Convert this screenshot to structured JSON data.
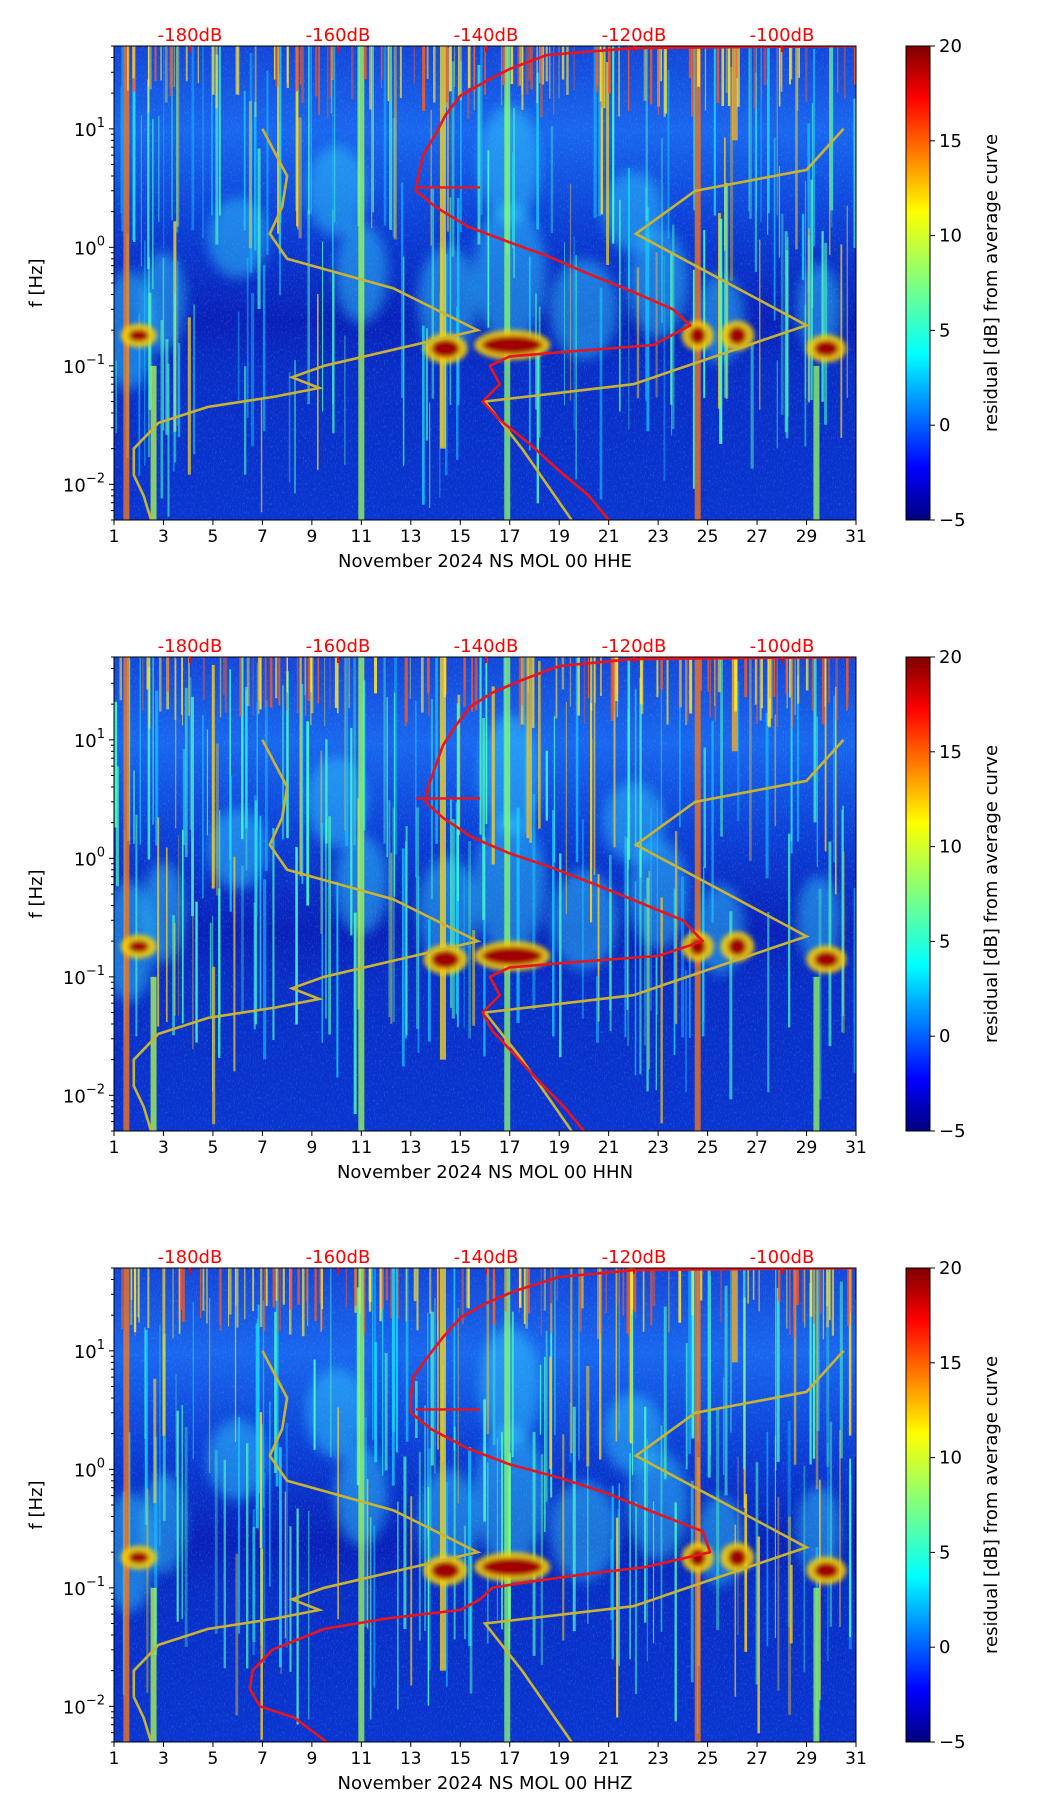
{
  "figure": {
    "x_ticks": [
      "1",
      "3",
      "5",
      "7",
      "9",
      "11",
      "13",
      "15",
      "17",
      "19",
      "21",
      "23",
      "25",
      "27",
      "29",
      "31"
    ],
    "y_ticks": [
      {
        "base": "10",
        "exp": "1",
        "value": 10
      },
      {
        "base": "10",
        "exp": "0",
        "value": 1
      },
      {
        "base": "10",
        "exp": "−1",
        "value": 0.1
      },
      {
        "base": "10",
        "exp": "−2",
        "value": 0.01
      }
    ],
    "db_ticks": [
      "-180dB",
      "-160dB",
      "-140dB",
      "-120dB",
      "-100dB"
    ],
    "colorbar": {
      "label": "residual [dB] from average curve",
      "ticks": [
        "20",
        "15",
        "10",
        "5",
        "0",
        "−5"
      ],
      "tick_values": [
        20,
        15,
        10,
        5,
        0,
        -5
      ],
      "range": [
        -5,
        20
      ],
      "cmap": "jet"
    },
    "ylabel": "f [Hz]",
    "colors": {
      "db_text": "#ff0000",
      "red_curve": "#e8141e",
      "model_curve": "#c8b432"
    }
  },
  "chart_data": [
    {
      "type": "heatmap",
      "title": "",
      "xlabel": "November 2024 NS MOL 00 HHE",
      "ylabel": "f [Hz]",
      "xlim": [
        1,
        31
      ],
      "ylim": [
        0.005,
        50
      ],
      "yscale": "log",
      "top_axis_db": [
        -180,
        -160,
        -140,
        -120,
        -100
      ],
      "series": [
        {
          "name": "residual",
          "values_desc": "spectrogram residual"
        },
        {
          "name": "average PSD curve (red)",
          "points": [
            [
              21,
              0.005
            ],
            [
              20.2,
              0.008
            ],
            [
              19,
              0.013
            ],
            [
              17.8,
              0.022
            ],
            [
              16.6,
              0.035
            ],
            [
              15.9,
              0.05
            ],
            [
              16.6,
              0.07
            ],
            [
              16.2,
              0.1
            ],
            [
              17,
              0.12
            ],
            [
              19,
              0.13
            ],
            [
              21,
              0.14
            ],
            [
              22.8,
              0.15
            ],
            [
              24.3,
              0.22
            ],
            [
              23.6,
              0.3
            ],
            [
              22,
              0.42
            ],
            [
              20,
              0.62
            ],
            [
              18.5,
              0.85
            ],
            [
              17,
              1.1
            ],
            [
              15.3,
              1.5
            ],
            [
              14,
              2.2
            ],
            [
              13.2,
              3
            ],
            [
              13.3,
              4
            ],
            [
              13.5,
              6
            ],
            [
              14,
              9
            ],
            [
              14.4,
              13
            ],
            [
              15,
              19
            ],
            [
              16,
              25
            ],
            [
              17,
              32
            ],
            [
              18.5,
              42
            ],
            [
              22,
              48
            ],
            [
              31,
              50
            ]
          ]
        },
        {
          "name": "noise model curve (yellow)",
          "points": [
            [
              2.5,
              0.005
            ],
            [
              2.2,
              0.008
            ],
            [
              1.8,
              0.012
            ],
            [
              1.8,
              0.02
            ],
            [
              2.8,
              0.033
            ],
            [
              4.8,
              0.045
            ],
            [
              7.5,
              0.055
            ],
            [
              9.3,
              0.065
            ],
            [
              8.2,
              0.08
            ],
            [
              9.5,
              0.1
            ],
            [
              15.7,
              0.2
            ],
            [
              12.3,
              0.45
            ],
            [
              8,
              0.8
            ],
            [
              7.3,
              1.3
            ],
            [
              7.8,
              2.2
            ],
            [
              8,
              4
            ],
            [
              7,
              10
            ],
            [
              19.5,
              0.005
            ],
            [
              17.5,
              0.02
            ],
            [
              16,
              0.05
            ],
            [
              22,
              0.07
            ],
            [
              29,
              0.22
            ],
            [
              22.1,
              1.3
            ],
            [
              24.5,
              3
            ],
            [
              29,
              4.5
            ],
            [
              30.5,
              10
            ]
          ]
        }
      ]
    },
    {
      "type": "heatmap",
      "title": "",
      "xlabel": "November 2024 NS MOL 00 HHN",
      "ylabel": "f [Hz]",
      "xlim": [
        1,
        31
      ],
      "ylim": [
        0.005,
        50
      ],
      "yscale": "log",
      "top_axis_db": [
        -180,
        -160,
        -140,
        -120,
        -100
      ],
      "series": [
        {
          "name": "residual",
          "values_desc": "spectrogram residual"
        },
        {
          "name": "average PSD curve (red)",
          "points": [
            [
              20,
              0.005
            ],
            [
              19.2,
              0.008
            ],
            [
              18.2,
              0.013
            ],
            [
              17.2,
              0.022
            ],
            [
              16.3,
              0.035
            ],
            [
              15.9,
              0.05
            ],
            [
              16.6,
              0.07
            ],
            [
              16.2,
              0.1
            ],
            [
              17,
              0.12
            ],
            [
              19,
              0.13
            ],
            [
              21,
              0.14
            ],
            [
              23,
              0.15
            ],
            [
              24.8,
              0.2
            ],
            [
              24,
              0.3
            ],
            [
              22.3,
              0.42
            ],
            [
              20.3,
              0.62
            ],
            [
              18.6,
              0.85
            ],
            [
              17,
              1.1
            ],
            [
              15.5,
              1.5
            ],
            [
              14.3,
              2.2
            ],
            [
              13.6,
              3
            ],
            [
              13.7,
              4
            ],
            [
              14,
              6
            ],
            [
              14.3,
              9
            ],
            [
              14.8,
              13
            ],
            [
              15.4,
              19
            ],
            [
              16.3,
              25
            ],
            [
              17.5,
              32
            ],
            [
              19,
              42
            ],
            [
              22,
              48
            ],
            [
              31,
              50
            ]
          ]
        },
        {
          "name": "noise model curve (yellow)",
          "points": [
            [
              2.5,
              0.005
            ],
            [
              2.2,
              0.008
            ],
            [
              1.8,
              0.012
            ],
            [
              1.8,
              0.02
            ],
            [
              2.8,
              0.033
            ],
            [
              4.8,
              0.045
            ],
            [
              7.5,
              0.055
            ],
            [
              9.3,
              0.065
            ],
            [
              8.2,
              0.08
            ],
            [
              9.5,
              0.1
            ],
            [
              15.7,
              0.2
            ],
            [
              12.3,
              0.45
            ],
            [
              8,
              0.8
            ],
            [
              7.3,
              1.3
            ],
            [
              7.8,
              2.2
            ],
            [
              8,
              4
            ],
            [
              7,
              10
            ],
            [
              19.5,
              0.005
            ],
            [
              17.5,
              0.02
            ],
            [
              16,
              0.05
            ],
            [
              22,
              0.07
            ],
            [
              29,
              0.22
            ],
            [
              22.1,
              1.3
            ],
            [
              24.5,
              3
            ],
            [
              29,
              4.5
            ],
            [
              30.5,
              10
            ]
          ]
        }
      ]
    },
    {
      "type": "heatmap",
      "title": "",
      "xlabel": "November 2024 NS MOL 00 HHZ",
      "ylabel": "f [Hz]",
      "xlim": [
        1,
        31
      ],
      "ylim": [
        0.005,
        50
      ],
      "yscale": "log",
      "top_axis_db": [
        -180,
        -160,
        -140,
        -120,
        -100
      ],
      "series": [
        {
          "name": "residual",
          "values_desc": "spectrogram residual"
        },
        {
          "name": "average PSD curve (red)",
          "points": [
            [
              9.6,
              0.005
            ],
            [
              8.3,
              0.008
            ],
            [
              6.9,
              0.01
            ],
            [
              6.5,
              0.014
            ],
            [
              6.6,
              0.02
            ],
            [
              7.4,
              0.03
            ],
            [
              9.5,
              0.045
            ],
            [
              12,
              0.055
            ],
            [
              15,
              0.065
            ],
            [
              15.8,
              0.08
            ],
            [
              16.3,
              0.1
            ],
            [
              17.5,
              0.11
            ],
            [
              20,
              0.13
            ],
            [
              22.5,
              0.15
            ],
            [
              25.1,
              0.2
            ],
            [
              24.8,
              0.3
            ],
            [
              23,
              0.42
            ],
            [
              21,
              0.62
            ],
            [
              19,
              0.85
            ],
            [
              17,
              1.1
            ],
            [
              15.3,
              1.5
            ],
            [
              13.8,
              2.2
            ],
            [
              13,
              3
            ],
            [
              13,
              4
            ],
            [
              13.1,
              6
            ],
            [
              13.7,
              9
            ],
            [
              14.3,
              13
            ],
            [
              15,
              19
            ],
            [
              16,
              25
            ],
            [
              17.2,
              32
            ],
            [
              19,
              42
            ],
            [
              22,
              48
            ],
            [
              31,
              50
            ]
          ]
        },
        {
          "name": "noise model curve (yellow)",
          "points": [
            [
              2.5,
              0.005
            ],
            [
              2.2,
              0.008
            ],
            [
              1.8,
              0.012
            ],
            [
              1.8,
              0.02
            ],
            [
              2.8,
              0.033
            ],
            [
              4.8,
              0.045
            ],
            [
              7.5,
              0.055
            ],
            [
              9.3,
              0.065
            ],
            [
              8.2,
              0.08
            ],
            [
              9.5,
              0.1
            ],
            [
              15.7,
              0.2
            ],
            [
              12.3,
              0.45
            ],
            [
              8,
              0.8
            ],
            [
              7.3,
              1.3
            ],
            [
              7.8,
              2.2
            ],
            [
              8,
              4
            ],
            [
              7,
              10
            ],
            [
              19.5,
              0.005
            ],
            [
              17.5,
              0.02
            ],
            [
              16,
              0.05
            ],
            [
              22,
              0.07
            ],
            [
              29,
              0.22
            ],
            [
              22.1,
              1.3
            ],
            [
              24.5,
              3
            ],
            [
              29,
              4.5
            ],
            [
              30.5,
              10
            ]
          ]
        }
      ]
    }
  ]
}
